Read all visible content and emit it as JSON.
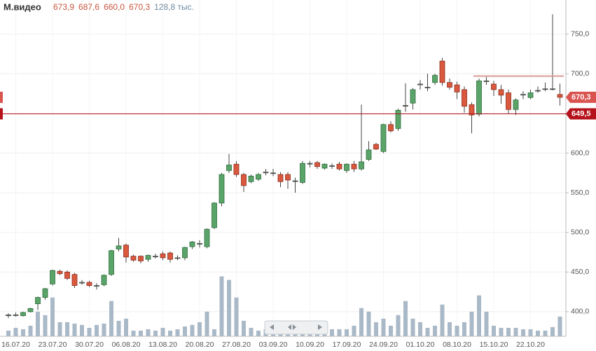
{
  "chart_data": {
    "type": "candlestick",
    "header": {
      "name": "М.видео",
      "open": {
        "value": 673.9,
        "label": "673,9"
      },
      "high": {
        "value": 687.6,
        "label": "687,6"
      },
      "low": {
        "value": 660.0,
        "label": "660,0"
      },
      "close": {
        "value": 670.3,
        "label": "670,3"
      },
      "volume": {
        "value": 128.8,
        "label": "128,8 тыс."
      }
    },
    "categories": [
      null,
      "16.07.20",
      null,
      null,
      null,
      null,
      "23.07.20",
      null,
      null,
      null,
      null,
      "30.07.20",
      null,
      null,
      null,
      null,
      "06.08.20",
      null,
      null,
      null,
      null,
      "13.08.20",
      null,
      null,
      null,
      null,
      "20.08.20",
      null,
      null,
      null,
      null,
      "27.08.20",
      null,
      null,
      null,
      null,
      "03.09.20",
      null,
      null,
      null,
      null,
      "10.09.20",
      null,
      null,
      null,
      null,
      "17.09.20",
      null,
      null,
      null,
      null,
      "24.09.20",
      null,
      null,
      null,
      null,
      "01.10.20",
      null,
      null,
      null,
      null,
      "08.10.20",
      null,
      null,
      null,
      null,
      "15.10.20",
      null,
      null,
      null,
      null,
      "22.10.20",
      null,
      null,
      null,
      null
    ],
    "open": [
      395,
      396,
      395,
      400,
      410,
      418,
      435,
      451,
      450,
      447,
      437,
      437,
      433,
      434,
      447,
      479,
      484,
      470,
      470,
      466,
      470,
      473,
      474,
      468,
      468,
      482,
      486,
      482,
      506,
      537,
      578,
      586,
      573,
      564,
      567,
      576,
      575,
      573,
      573,
      565,
      563,
      587,
      588,
      581,
      584,
      586,
      578,
      586,
      580,
      592,
      611,
      602,
      636,
      631,
      660,
      663,
      687,
      683,
      689,
      716,
      689,
      686,
      680,
      661,
      649,
      691,
      687,
      680,
      676,
      655,
      674,
      670,
      679,
      681,
      681,
      673.9
    ],
    "high": [
      398,
      399,
      400,
      405,
      419,
      430,
      453,
      453,
      452,
      449,
      440,
      439,
      436,
      447,
      478,
      493,
      486,
      472,
      471,
      472,
      473,
      476,
      476,
      471,
      482,
      489,
      490,
      505,
      538,
      575,
      599,
      590,
      575,
      573,
      575,
      580,
      580,
      576,
      576,
      569,
      590,
      590,
      590,
      587,
      587,
      589,
      587,
      590,
      661,
      615,
      613,
      637,
      640,
      656,
      688,
      682,
      692,
      700,
      700,
      720,
      694,
      690,
      684,
      664,
      694,
      696,
      691,
      686,
      680,
      669,
      678,
      680,
      684,
      689,
      775,
      687.6
    ],
    "low": [
      392,
      394,
      394,
      399,
      402,
      415,
      433,
      446,
      440,
      430,
      434,
      431,
      428,
      432,
      445,
      476,
      462,
      463,
      461,
      463,
      467,
      465,
      462,
      465,
      465,
      479,
      481,
      480,
      504,
      533,
      575,
      570,
      551,
      562,
      565,
      572,
      571,
      557,
      555,
      550,
      561,
      582,
      580,
      579,
      580,
      578,
      575,
      576,
      578,
      590,
      604,
      600,
      626,
      628,
      652,
      655,
      680,
      678,
      686,
      685,
      680,
      668,
      651,
      625,
      646,
      686,
      672,
      662,
      650,
      648,
      668,
      668,
      676,
      678,
      679,
      660
    ],
    "close": [
      396,
      396,
      399,
      404,
      418,
      429,
      452,
      448,
      442,
      433,
      437,
      433,
      433,
      446,
      477,
      483,
      469,
      465,
      464,
      471,
      470,
      468,
      466,
      468,
      481,
      488,
      486,
      504,
      537,
      573,
      585,
      573,
      559,
      571,
      573,
      576,
      575,
      564,
      566,
      565,
      587,
      587,
      583,
      586,
      584,
      580,
      586,
      580,
      589,
      604,
      605,
      636,
      628,
      654,
      660,
      680,
      687,
      683,
      698,
      689,
      683,
      677,
      659,
      648,
      691,
      691,
      680,
      673,
      655,
      667,
      674,
      676,
      679,
      681,
      681,
      670.3
    ],
    "volume": [
      37,
      55,
      46,
      69,
      161,
      138,
      253,
      92,
      92,
      83,
      74,
      55,
      74,
      83,
      230,
      101,
      115,
      37,
      37,
      46,
      37,
      55,
      37,
      46,
      64,
      74,
      92,
      161,
      46,
      391,
      368,
      253,
      101,
      55,
      37,
      46,
      55,
      55,
      46,
      55,
      92,
      69,
      55,
      37,
      46,
      46,
      46,
      69,
      184,
      161,
      92,
      115,
      69,
      138,
      230,
      115,
      92,
      55,
      69,
      207,
      92,
      69,
      92,
      161,
      267,
      161,
      69,
      55,
      55,
      55,
      46,
      46,
      37,
      37,
      60,
      128.8
    ],
    "up_color": "#5aa469",
    "down_color": "#d9583e",
    "volume_color": "#a9b9c7",
    "volume_lim": [
      0,
      480
    ],
    "ylim": [
      369,
      793
    ],
    "yticks": [
      {
        "value": 400,
        "label": "400,0"
      },
      {
        "value": 450,
        "label": "450,0"
      },
      {
        "value": 500,
        "label": "500,0"
      },
      {
        "value": 550,
        "label": "550,0"
      },
      {
        "value": 600,
        "label": "600,0"
      },
      {
        "value": 650,
        "label": "650,0"
      },
      {
        "value": 700,
        "label": "700,0"
      },
      {
        "value": 750,
        "label": "750,0"
      }
    ],
    "grid": true,
    "last_price": {
      "value": 670.3,
      "label": "670,3",
      "color": "#d9534f"
    },
    "level": {
      "value": 649.5,
      "label": "649,5",
      "color": "#b5121b"
    },
    "resistance": {
      "value": 697,
      "color": "#d99a94"
    }
  }
}
